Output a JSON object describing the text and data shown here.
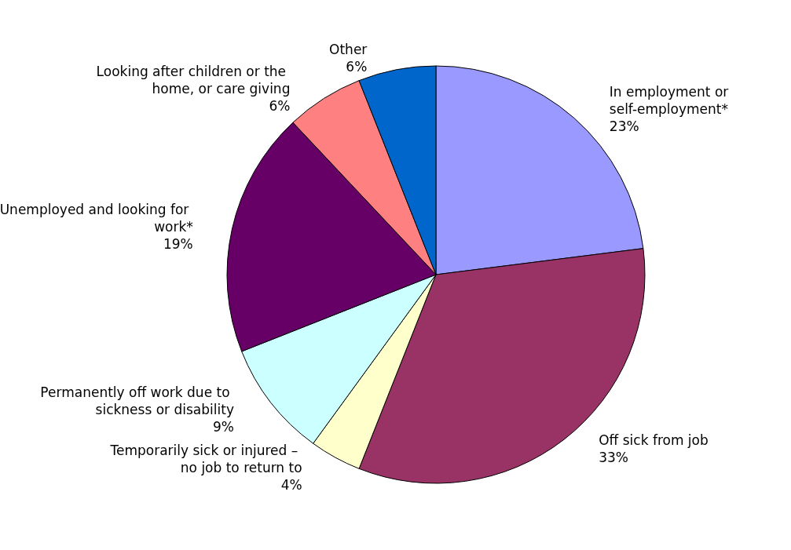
{
  "chart_data": {
    "type": "pie",
    "categories": [
      "In employment or self-employment*",
      "Off sick from job",
      "Temporarily sick or injured – no job to return to",
      "Permanently off work due to sickness or disability",
      "Unemployed and looking for work*",
      "Looking after children or the home, or care giving",
      "Other"
    ],
    "values": [
      23,
      33,
      4,
      9,
      19,
      6,
      6
    ],
    "value_labels": [
      "23%",
      "33%",
      "4%",
      "9%",
      "19%",
      "6%",
      "6%"
    ],
    "colors": [
      "#9999ff",
      "#993366",
      "#ffffcc",
      "#ccffff",
      "#660066",
      "#ff8080",
      "#0066cc"
    ],
    "legend": false
  }
}
